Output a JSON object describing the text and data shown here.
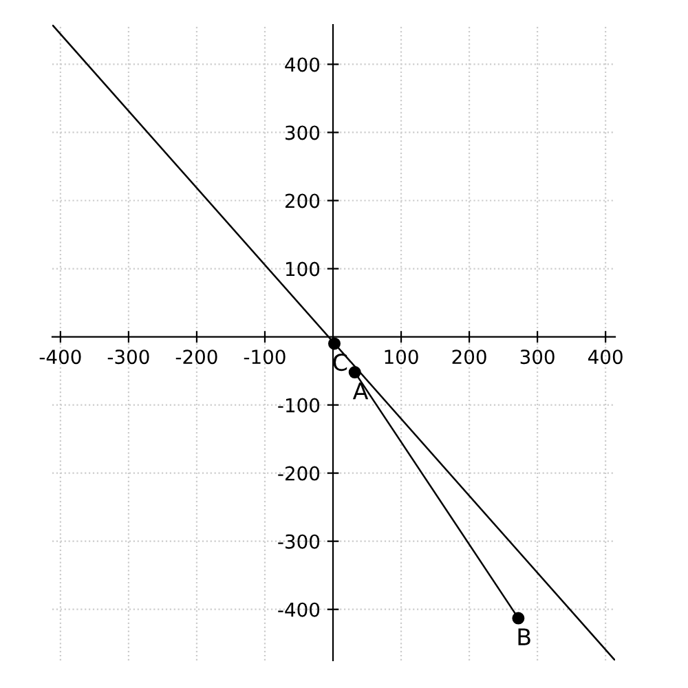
{
  "chart_data": {
    "type": "line",
    "xlim": [
      -412,
      414
    ],
    "ylim": [
      -475,
      458
    ],
    "xticks": [
      -400,
      -300,
      -200,
      -100,
      100,
      200,
      300,
      400
    ],
    "yticks": [
      -400,
      -300,
      -200,
      -100,
      100,
      200,
      300,
      400
    ],
    "grid": true,
    "line_style": "solid",
    "marker": "none",
    "series": [
      {
        "color": "#000000",
        "x": [
          -412,
          414
        ],
        "values": [
          458,
          -475
        ]
      },
      {
        "color": "#000000",
        "x": [
          32,
          272
        ],
        "values": [
          -52,
          -413
        ]
      },
      {
        "type": "scatter",
        "marker": "circle",
        "color": "#000000",
        "x": [
          32,
          272,
          2
        ],
        "values": [
          -52,
          -413,
          -10
        ]
      }
    ],
    "annotations": [
      {
        "text": "A",
        "x": 32,
        "y": -52
      },
      {
        "text": "B",
        "x": 272,
        "y": -413
      },
      {
        "text": "C",
        "x": 2,
        "y": -10
      }
    ]
  }
}
